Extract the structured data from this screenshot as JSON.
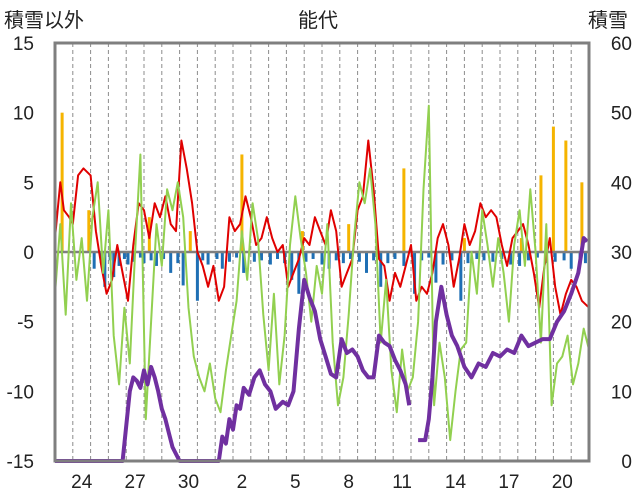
{
  "chart_data": {
    "type": "bar+line",
    "title": "能代",
    "ylabel_left": "積雪以外",
    "ylabel_right": "積雪",
    "ylim_left": [
      -15,
      15
    ],
    "ylim_right": [
      0,
      60
    ],
    "yticks_left": [
      15,
      10,
      5,
      0,
      -5,
      -10,
      -15
    ],
    "yticks_right": [
      60,
      50,
      40,
      30,
      20,
      10,
      0
    ],
    "xticks": [
      "24",
      "27",
      "30",
      "2",
      "5",
      "8",
      "11",
      "14",
      "17",
      "20"
    ],
    "x_range_days": [
      0,
      30
    ],
    "xtick_positions_days": [
      1.5,
      4.5,
      7.5,
      10.5,
      13.5,
      16.5,
      19.5,
      22.5,
      25.5,
      28.5
    ],
    "gridlines_vertical_days": [
      0,
      1,
      2,
      3,
      4,
      5,
      6,
      7,
      8,
      9,
      10,
      11,
      12,
      13,
      14,
      15,
      16,
      17,
      18,
      19,
      20,
      21,
      22,
      23,
      24,
      25,
      26,
      27,
      28,
      29,
      30
    ],
    "series": [
      {
        "role": "bar",
        "axis": "left",
        "color": "#1f6fb4",
        "x": [
          2.2,
          2.6,
          2.8,
          3.1,
          3.3,
          3.6,
          3.9,
          4.1,
          4.4,
          4.8,
          5.0,
          5.4,
          5.7,
          6.1,
          6.5,
          6.9,
          7.2,
          8.0,
          8.3,
          8.6,
          9.1,
          9.4,
          9.8,
          10.2,
          10.6,
          11.2,
          11.6,
          12.1,
          12.5,
          12.9,
          13.3,
          13.7,
          14.1,
          14.5,
          15.0,
          15.4,
          15.8,
          16.2,
          16.6,
          17.1,
          17.5,
          17.9,
          18.3,
          18.7,
          19.1,
          19.6,
          20.2,
          20.6,
          21.0,
          21.4,
          21.8,
          22.3,
          22.8,
          23.2,
          23.7,
          24.1,
          24.6,
          25.1,
          25.6,
          26.1,
          26.6,
          27.1,
          27.6,
          28.1,
          28.6,
          29.0,
          29.5,
          29.8
        ],
        "values": [
          -1.2,
          -0.8,
          -2.5,
          -0.6,
          -1.8,
          -1.0,
          -0.5,
          -0.9,
          -0.7,
          -0.4,
          -0.8,
          -0.6,
          -1.0,
          -0.5,
          -1.5,
          -0.8,
          -2.4,
          -3.5,
          -0.6,
          -0.9,
          -0.5,
          -1.2,
          -0.7,
          -0.4,
          -1.5,
          -0.7,
          -0.6,
          -0.9,
          -0.5,
          -0.8,
          -2.0,
          -3.0,
          -0.7,
          -0.5,
          -0.9,
          -1.2,
          -0.6,
          -0.8,
          -0.5,
          -0.7,
          -1.5,
          -0.6,
          -2.5,
          -0.8,
          -0.5,
          -1.0,
          -3.0,
          -0.6,
          -0.4,
          -2.2,
          -0.9,
          -0.6,
          -3.5,
          -0.8,
          -0.5,
          -0.6,
          -0.7,
          -0.5,
          -0.9,
          -1.0,
          -0.6,
          -0.4,
          -0.8,
          -0.7,
          -0.6,
          -1.2,
          -0.9,
          -0.8
        ]
      },
      {
        "role": "bar",
        "axis": "left",
        "color": "#f5b400",
        "x": [
          0.4,
          1.9,
          5.3,
          7.6,
          10.5,
          13.9,
          16.5,
          19.6,
          23.0,
          26.2,
          27.3,
          28.0,
          28.7,
          29.6
        ],
        "values": [
          10.0,
          3.0,
          2.5,
          1.5,
          7.0,
          1.5,
          2.0,
          6.0,
          1.0,
          1.0,
          5.5,
          9.0,
          8.0,
          5.0
        ]
      },
      {
        "role": "line",
        "axis": "left",
        "color": "#e00000",
        "x": [
          0.0,
          0.3,
          0.5,
          0.8,
          1.0,
          1.3,
          1.6,
          2.0,
          2.3,
          2.6,
          2.9,
          3.2,
          3.5,
          3.8,
          4.1,
          4.4,
          4.7,
          5.0,
          5.3,
          5.6,
          5.9,
          6.2,
          6.5,
          6.8,
          7.1,
          7.4,
          7.7,
          8.0,
          8.3,
          8.6,
          8.9,
          9.2,
          9.5,
          9.8,
          10.1,
          10.4,
          10.7,
          11.0,
          11.3,
          11.6,
          11.9,
          12.2,
          12.5,
          12.8,
          13.1,
          13.4,
          13.7,
          14.0,
          14.3,
          14.6,
          14.9,
          15.2,
          15.5,
          15.8,
          16.1,
          16.4,
          16.7,
          17.0,
          17.3,
          17.6,
          17.9,
          18.2,
          18.5,
          18.8,
          19.1,
          19.4,
          19.7,
          20.0,
          20.3,
          20.6,
          20.9,
          21.2,
          21.5,
          21.8,
          22.1,
          22.4,
          22.7,
          23.0,
          23.3,
          23.6,
          23.9,
          24.2,
          24.5,
          24.8,
          25.1,
          25.4,
          25.7,
          26.0,
          26.3,
          26.6,
          26.9,
          27.2,
          27.5,
          27.8,
          28.1,
          28.4,
          28.7,
          29.0,
          29.3,
          29.6,
          30.0
        ],
        "values": [
          1.0,
          5.0,
          3.0,
          2.5,
          2.0,
          5.5,
          6.0,
          5.5,
          1.5,
          -1.0,
          -3.0,
          -2.0,
          0.5,
          -1.5,
          -3.5,
          0.5,
          3.5,
          3.0,
          1.0,
          3.5,
          2.5,
          4.0,
          2.0,
          1.5,
          8.0,
          6.0,
          3.5,
          0.0,
          -1.0,
          -2.5,
          -1.0,
          -3.5,
          -2.5,
          2.5,
          1.5,
          2.0,
          4.0,
          2.5,
          0.5,
          1.0,
          2.5,
          1.0,
          0.0,
          0.5,
          -2.5,
          -1.5,
          -0.5,
          1.0,
          0.5,
          2.5,
          1.5,
          0.5,
          3.0,
          1.5,
          -2.5,
          -1.5,
          -0.5,
          3.0,
          4.0,
          8.0,
          4.5,
          -0.5,
          -1.0,
          -3.5,
          -1.5,
          -2.5,
          -1.0,
          0.5,
          -3.5,
          -2.5,
          -3.0,
          -1.5,
          1.0,
          2.0,
          0.5,
          -2.5,
          -0.5,
          2.0,
          0.5,
          1.5,
          3.5,
          2.5,
          3.0,
          2.5,
          0.5,
          -1.0,
          1.0,
          1.5,
          2.0,
          0.5,
          -1.5,
          -4.0,
          -1.0,
          1.0,
          -2.5,
          -4.5,
          -3.0,
          -2.0,
          -2.5,
          -3.5,
          -4.0
        ]
      },
      {
        "role": "line",
        "axis": "left",
        "color": "#92d050",
        "x": [
          0.0,
          0.3,
          0.6,
          0.9,
          1.2,
          1.5,
          1.8,
          2.1,
          2.4,
          2.7,
          3.0,
          3.3,
          3.6,
          3.9,
          4.2,
          4.5,
          4.8,
          5.1,
          5.4,
          5.7,
          6.0,
          6.3,
          6.6,
          6.9,
          7.2,
          7.5,
          7.8,
          8.1,
          8.4,
          8.7,
          9.0,
          9.3,
          9.6,
          9.9,
          10.2,
          10.5,
          10.8,
          11.1,
          11.4,
          11.7,
          12.0,
          12.3,
          12.6,
          12.9,
          13.2,
          13.5,
          13.8,
          14.1,
          14.4,
          14.7,
          15.0,
          15.3,
          15.6,
          15.9,
          16.2,
          16.5,
          16.8,
          17.1,
          17.4,
          17.7,
          18.0,
          18.3,
          18.6,
          18.9,
          19.2,
          19.5,
          19.8,
          20.1,
          20.4,
          20.7,
          21.0,
          21.3,
          21.6,
          21.9,
          22.2,
          22.5,
          22.8,
          23.1,
          23.4,
          23.7,
          24.0,
          24.3,
          24.6,
          24.9,
          25.2,
          25.5,
          25.8,
          26.1,
          26.4,
          26.7,
          27.0,
          27.3,
          27.6,
          27.9,
          28.2,
          28.5,
          28.8,
          29.1,
          29.4,
          29.7,
          30.0
        ],
        "values": [
          -3.0,
          2.0,
          -4.5,
          3.5,
          -2.0,
          1.0,
          -3.5,
          2.5,
          5.0,
          -1.5,
          3.0,
          -6.0,
          -9.5,
          -4.0,
          -8.0,
          0.0,
          7.0,
          -12.0,
          -5.0,
          2.0,
          -1.0,
          4.5,
          3.0,
          5.0,
          2.5,
          -4.0,
          -7.5,
          -9.0,
          -10.0,
          -8.0,
          -10.5,
          -11.5,
          -8.5,
          -6.0,
          -3.5,
          1.5,
          -2.0,
          3.5,
          1.0,
          -4.5,
          -8.5,
          -3.0,
          -9.5,
          -6.0,
          0.5,
          4.0,
          1.0,
          -1.5,
          -5.0,
          -1.0,
          -3.0,
          2.0,
          -6.5,
          -11.0,
          -9.0,
          -4.5,
          1.0,
          5.0,
          3.5,
          6.0,
          2.0,
          -6.5,
          -2.0,
          -8.5,
          -11.5,
          -7.0,
          -10.0,
          -9.0,
          -5.0,
          4.5,
          10.5,
          -11.0,
          -6.5,
          -9.0,
          -13.5,
          -10.0,
          -7.0,
          -6.5,
          0.0,
          -3.0,
          3.0,
          0.5,
          -2.5,
          1.0,
          -1.5,
          -5.0,
          0.5,
          3.0,
          -1.0,
          4.5,
          0.0,
          -6.5,
          2.0,
          -11.0,
          -8.0,
          -7.5,
          -6.0,
          -9.5,
          -8.0,
          -5.5,
          -7.0
        ]
      },
      {
        "role": "line",
        "axis": "right",
        "color": "#7030a0",
        "x": [
          0.0,
          3.8,
          4.0,
          4.2,
          4.4,
          4.6,
          4.8,
          5.0,
          5.2,
          5.4,
          5.6,
          5.8,
          6.0,
          6.2,
          6.4,
          6.6,
          6.8,
          7.0,
          7.5,
          8.0,
          8.5,
          9.2,
          9.4,
          9.6,
          9.8,
          10.0,
          10.2,
          10.4,
          10.6,
          10.9,
          11.2,
          11.5,
          11.8,
          12.1,
          12.4,
          12.8,
          13.1,
          13.4,
          13.7,
          14.0,
          14.3,
          14.6,
          14.9,
          15.2,
          15.5,
          15.8,
          16.1,
          16.4,
          16.7,
          17.0,
          17.3,
          17.6,
          17.9,
          18.2,
          18.5,
          18.8,
          19.1,
          19.4,
          19.7,
          19.9
        ],
        "values": [
          0.0,
          0.0,
          5.0,
          10.0,
          12.0,
          11.5,
          10.5,
          13.0,
          11.0,
          13.5,
          12.0,
          10.0,
          7.5,
          6.0,
          4.0,
          2.0,
          1.0,
          0.0,
          0.0,
          0.0,
          0.0,
          0.0,
          3.5,
          2.5,
          6.0,
          4.5,
          8.0,
          7.5,
          10.5,
          9.5,
          12.0,
          13.0,
          11.0,
          10.0,
          7.5,
          8.5,
          8.0,
          10.0,
          19.0,
          26.0,
          23.5,
          21.5,
          17.5,
          15.0,
          12.5,
          12.0,
          17.5,
          15.5,
          16.0,
          15.0,
          13.0,
          12.0,
          12.0,
          18.0,
          17.0,
          16.5,
          14.5,
          13.0,
          11.0,
          8.0
        ]
      },
      {
        "role": "line",
        "axis": "right",
        "color": "#7030a0",
        "x": [
          20.4,
          20.8,
          21.0,
          21.2,
          21.4,
          21.7,
          22.0,
          22.3,
          22.6,
          23.0,
          23.4,
          23.8,
          24.2,
          24.6,
          25.0,
          25.4,
          25.8,
          26.2,
          26.6,
          27.0,
          27.4,
          27.8,
          28.2,
          28.6,
          29.0,
          29.4,
          29.7,
          29.9
        ],
        "values": [
          3.0,
          3.0,
          6.0,
          12.0,
          20.0,
          25.0,
          21.0,
          18.0,
          16.5,
          13.5,
          12.0,
          14.0,
          13.5,
          15.5,
          15.0,
          16.0,
          15.5,
          18.0,
          16.5,
          17.0,
          17.5,
          17.5,
          20.0,
          21.5,
          24.0,
          27.0,
          32.0,
          31.5
        ]
      }
    ]
  }
}
